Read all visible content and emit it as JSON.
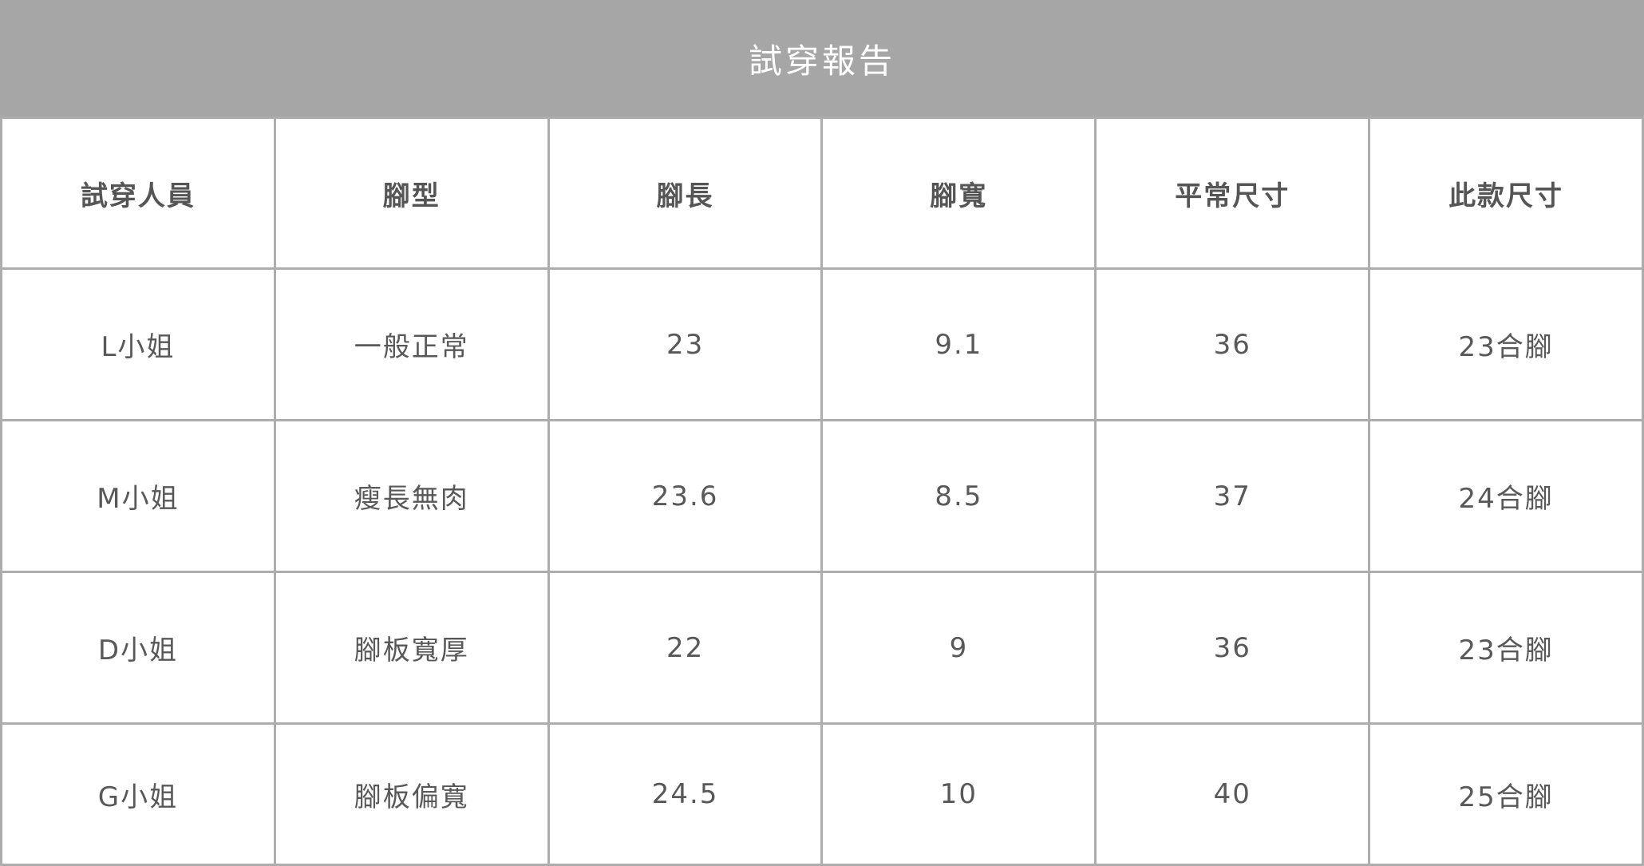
{
  "title": "試穿報告",
  "columns": [
    "試穿人員",
    "腳型",
    "腳長",
    "腳寬",
    "平常尺寸",
    "此款尺寸"
  ],
  "rows": [
    [
      "L小姐",
      "一般正常",
      "23",
      "9.1",
      "36",
      "23合腳"
    ],
    [
      "M小姐",
      "瘦長無肉",
      "23.6",
      "8.5",
      "37",
      "24合腳"
    ],
    [
      "D小姐",
      "腳板寬厚",
      "22",
      "9",
      "36",
      "23合腳"
    ],
    [
      "G小姐",
      "腳板偏寬",
      "24.5",
      "10",
      "40",
      "25合腳"
    ]
  ]
}
